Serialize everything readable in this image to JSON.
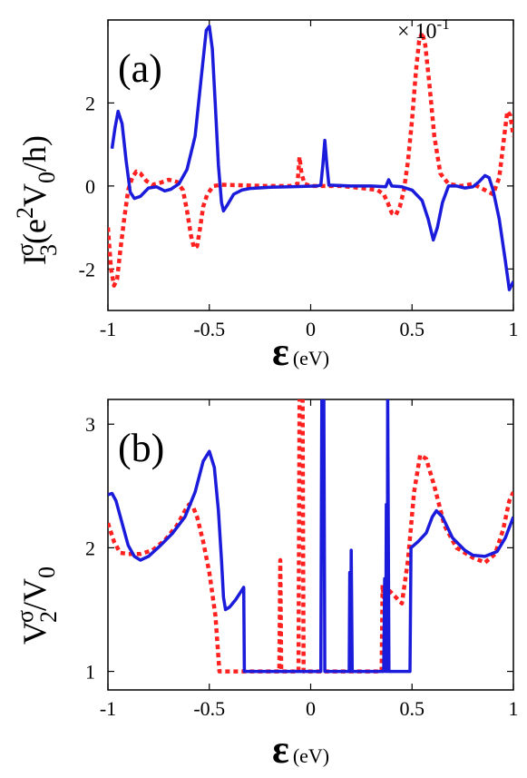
{
  "chart_data": [
    {
      "type": "line",
      "panel_label": "(a)",
      "multiplier": "× 10",
      "multiplier_exp": "-1",
      "xlabel": "ε",
      "xunit": "(eV)",
      "ylabel": {
        "main": "I",
        "sup": "σ",
        "sub": "3",
        "paren": "(e",
        "p_sup": "2",
        "v": "V",
        "v_sub": "0",
        "tail": "/h)"
      },
      "xlim": [
        -1,
        1
      ],
      "ylim": [
        -3,
        4
      ],
      "xticks": [
        -1,
        -0.5,
        0,
        0.5,
        1
      ],
      "xtick_labels": [
        "-1",
        "-0.5",
        "0",
        "0.5",
        "1"
      ],
      "yticks": [
        -2,
        0,
        2
      ],
      "ytick_labels": [
        "-2",
        "0",
        "2"
      ],
      "series": [
        {
          "color": "#1b1bdb",
          "style": "solid",
          "points": [
            [
              -0.98,
              0.9
            ],
            [
              -0.965,
              1.4
            ],
            [
              -0.95,
              1.8
            ],
            [
              -0.93,
              1.5
            ],
            [
              -0.91,
              0.6
            ],
            [
              -0.89,
              -0.15
            ],
            [
              -0.87,
              -0.3
            ],
            [
              -0.84,
              -0.25
            ],
            [
              -0.8,
              -0.05
            ],
            [
              -0.76,
              -0.02
            ],
            [
              -0.72,
              -0.12
            ],
            [
              -0.69,
              -0.08
            ],
            [
              -0.65,
              0.05
            ],
            [
              -0.61,
              0.4
            ],
            [
              -0.57,
              1.2
            ],
            [
              -0.54,
              2.6
            ],
            [
              -0.515,
              3.75
            ],
            [
              -0.5,
              3.85
            ],
            [
              -0.485,
              3.3
            ],
            [
              -0.47,
              1.9
            ],
            [
              -0.455,
              0.5
            ],
            [
              -0.44,
              -0.4
            ],
            [
              -0.43,
              -0.6
            ],
            [
              -0.41,
              -0.45
            ],
            [
              -0.38,
              -0.2
            ],
            [
              -0.34,
              -0.1
            ],
            [
              -0.3,
              -0.06
            ],
            [
              -0.2,
              -0.03
            ],
            [
              -0.1,
              -0.02
            ],
            [
              0.03,
              0.0
            ],
            [
              0.05,
              0.02
            ],
            [
              0.06,
              0.5
            ],
            [
              0.07,
              1.1
            ],
            [
              0.08,
              0.5
            ],
            [
              0.09,
              0.02
            ],
            [
              0.2,
              0.0
            ],
            [
              0.3,
              0.0
            ],
            [
              0.37,
              -0.02
            ],
            [
              0.385,
              0.15
            ],
            [
              0.4,
              0.0
            ],
            [
              0.45,
              -0.02
            ],
            [
              0.5,
              -0.1
            ],
            [
              0.55,
              -0.35
            ],
            [
              0.58,
              -0.8
            ],
            [
              0.605,
              -1.3
            ],
            [
              0.625,
              -1.0
            ],
            [
              0.65,
              -0.4
            ],
            [
              0.68,
              0.0
            ],
            [
              0.72,
              0.0
            ],
            [
              0.76,
              -0.05
            ],
            [
              0.8,
              -0.02
            ],
            [
              0.83,
              0.1
            ],
            [
              0.86,
              0.25
            ],
            [
              0.88,
              0.2
            ],
            [
              0.9,
              -0.1
            ],
            [
              0.93,
              -0.8
            ],
            [
              0.96,
              -1.8
            ],
            [
              0.98,
              -2.5
            ],
            [
              1.0,
              -2.3
            ]
          ]
        },
        {
          "color": "#ff2020",
          "style": "dotted",
          "points": [
            [
              -1.0,
              -1.0
            ],
            [
              -0.985,
              -2.0
            ],
            [
              -0.97,
              -2.4
            ],
            [
              -0.955,
              -2.25
            ],
            [
              -0.94,
              -1.6
            ],
            [
              -0.92,
              -0.8
            ],
            [
              -0.9,
              -0.1
            ],
            [
              -0.88,
              0.2
            ],
            [
              -0.86,
              0.35
            ],
            [
              -0.84,
              0.3
            ],
            [
              -0.81,
              0.12
            ],
            [
              -0.78,
              0.03
            ],
            [
              -0.74,
              0.08
            ],
            [
              -0.7,
              0.15
            ],
            [
              -0.66,
              0.1
            ],
            [
              -0.63,
              -0.1
            ],
            [
              -0.61,
              -0.6
            ],
            [
              -0.59,
              -1.2
            ],
            [
              -0.575,
              -1.5
            ],
            [
              -0.56,
              -1.45
            ],
            [
              -0.545,
              -1.0
            ],
            [
              -0.53,
              -0.5
            ],
            [
              -0.51,
              -0.2
            ],
            [
              -0.48,
              0.0
            ],
            [
              -0.44,
              0.03
            ],
            [
              -0.38,
              0.02
            ],
            [
              -0.3,
              0.01
            ],
            [
              -0.2,
              0.0
            ],
            [
              -0.1,
              0.0
            ],
            [
              -0.065,
              0.05
            ],
            [
              -0.055,
              0.7
            ],
            [
              -0.045,
              0.3
            ],
            [
              -0.03,
              0.05
            ],
            [
              0.0,
              0.0
            ],
            [
              0.15,
              0.0
            ],
            [
              0.25,
              -0.05
            ],
            [
              0.33,
              -0.1
            ],
            [
              0.36,
              -0.2
            ],
            [
              0.38,
              -0.4
            ],
            [
              0.4,
              -0.65
            ],
            [
              0.42,
              -0.7
            ],
            [
              0.44,
              -0.5
            ],
            [
              0.46,
              -0.1
            ],
            [
              0.48,
              0.6
            ],
            [
              0.5,
              1.6
            ],
            [
              0.52,
              2.8
            ],
            [
              0.535,
              3.5
            ],
            [
              0.55,
              3.7
            ],
            [
              0.565,
              3.4
            ],
            [
              0.585,
              2.5
            ],
            [
              0.61,
              1.2
            ],
            [
              0.64,
              0.3
            ],
            [
              0.68,
              0.05
            ],
            [
              0.74,
              0.0
            ],
            [
              0.8,
              0.05
            ],
            [
              0.86,
              -0.1
            ],
            [
              0.9,
              -0.2
            ],
            [
              0.93,
              0.2
            ],
            [
              0.955,
              1.2
            ],
            [
              0.97,
              1.8
            ],
            [
              0.985,
              1.7
            ],
            [
              1.0,
              1.2
            ]
          ]
        }
      ]
    },
    {
      "type": "line",
      "panel_label": "(b)",
      "xlabel": "ε",
      "xunit": "(eV)",
      "ylabel": {
        "main": "V",
        "sup": "σ",
        "sub": "2",
        "tail": "/V",
        "tail_sub": "0"
      },
      "xlim": [
        -1,
        1
      ],
      "ylim": [
        0.85,
        3.2
      ],
      "xticks": [
        -1,
        -0.5,
        0,
        0.5,
        1
      ],
      "xtick_labels": [
        "-1",
        "-0.5",
        "0",
        "0.5",
        "1"
      ],
      "yticks": [
        1,
        2,
        3
      ],
      "ytick_labels": [
        "1",
        "2",
        "3"
      ],
      "series": [
        {
          "color": "#1b1bdb",
          "style": "solid",
          "points": [
            [
              -1.0,
              2.43
            ],
            [
              -0.98,
              2.44
            ],
            [
              -0.96,
              2.38
            ],
            [
              -0.93,
              2.2
            ],
            [
              -0.9,
              2.02
            ],
            [
              -0.87,
              1.93
            ],
            [
              -0.84,
              1.9
            ],
            [
              -0.8,
              1.93
            ],
            [
              -0.74,
              2.02
            ],
            [
              -0.68,
              2.12
            ],
            [
              -0.62,
              2.25
            ],
            [
              -0.57,
              2.45
            ],
            [
              -0.53,
              2.7
            ],
            [
              -0.5,
              2.78
            ],
            [
              -0.475,
              2.65
            ],
            [
              -0.455,
              2.3
            ],
            [
              -0.44,
              1.9
            ],
            [
              -0.43,
              1.6
            ],
            [
              -0.42,
              1.5
            ],
            [
              -0.4,
              1.52
            ],
            [
              -0.37,
              1.58
            ],
            [
              -0.35,
              1.63
            ],
            [
              -0.33,
              1.68
            ],
            [
              -0.327,
              1.0
            ],
            [
              -0.1,
              1.0
            ],
            [
              0.05,
              1.0
            ],
            [
              0.055,
              3.25
            ],
            [
              0.065,
              3.25
            ],
            [
              0.07,
              1.0
            ],
            [
              0.19,
              1.0
            ],
            [
              0.193,
              1.8
            ],
            [
              0.197,
              1.0
            ],
            [
              0.2,
              1.98
            ],
            [
              0.205,
              1.0
            ],
            [
              0.36,
              1.0
            ],
            [
              0.365,
              1.75
            ],
            [
              0.37,
              1.0
            ],
            [
              0.373,
              2.35
            ],
            [
              0.378,
              1.0
            ],
            [
              0.38,
              3.25
            ],
            [
              0.386,
              1.0
            ],
            [
              0.45,
              1.0
            ],
            [
              0.49,
              1.0
            ],
            [
              0.495,
              2.0
            ],
            [
              0.53,
              2.05
            ],
            [
              0.57,
              2.12
            ],
            [
              0.6,
              2.25
            ],
            [
              0.62,
              2.3
            ],
            [
              0.65,
              2.25
            ],
            [
              0.7,
              2.08
            ],
            [
              0.76,
              1.98
            ],
            [
              0.8,
              1.94
            ],
            [
              0.86,
              1.93
            ],
            [
              0.92,
              1.97
            ],
            [
              0.96,
              2.08
            ],
            [
              1.0,
              2.25
            ]
          ]
        },
        {
          "color": "#ff2020",
          "style": "dotted",
          "points": [
            [
              -1.0,
              2.2
            ],
            [
              -0.97,
              2.05
            ],
            [
              -0.94,
              1.96
            ],
            [
              -0.9,
              1.95
            ],
            [
              -0.84,
              1.95
            ],
            [
              -0.78,
              1.98
            ],
            [
              -0.72,
              2.06
            ],
            [
              -0.66,
              2.18
            ],
            [
              -0.62,
              2.3
            ],
            [
              -0.6,
              2.35
            ],
            [
              -0.58,
              2.33
            ],
            [
              -0.56,
              2.25
            ],
            [
              -0.53,
              2.05
            ],
            [
              -0.5,
              1.8
            ],
            [
              -0.47,
              1.45
            ],
            [
              -0.45,
              1.0
            ],
            [
              -0.2,
              1.0
            ],
            [
              -0.155,
              1.0
            ],
            [
              -0.15,
              1.9
            ],
            [
              -0.145,
              1.0
            ],
            [
              -0.06,
              1.0
            ],
            [
              -0.055,
              3.25
            ],
            [
              -0.04,
              3.25
            ],
            [
              -0.035,
              1.0
            ],
            [
              0.2,
              1.0
            ],
            [
              0.35,
              1.0
            ],
            [
              0.355,
              1.7
            ],
            [
              0.36,
              1.6
            ],
            [
              0.39,
              1.65
            ],
            [
              0.42,
              1.6
            ],
            [
              0.45,
              1.55
            ],
            [
              0.48,
              1.9
            ],
            [
              0.51,
              2.45
            ],
            [
              0.54,
              2.75
            ],
            [
              0.57,
              2.72
            ],
            [
              0.61,
              2.5
            ],
            [
              0.66,
              2.18
            ],
            [
              0.72,
              2.0
            ],
            [
              0.8,
              1.92
            ],
            [
              0.86,
              1.88
            ],
            [
              0.91,
              1.95
            ],
            [
              0.95,
              2.15
            ],
            [
              0.98,
              2.38
            ],
            [
              1.0,
              2.45
            ]
          ]
        }
      ]
    }
  ]
}
